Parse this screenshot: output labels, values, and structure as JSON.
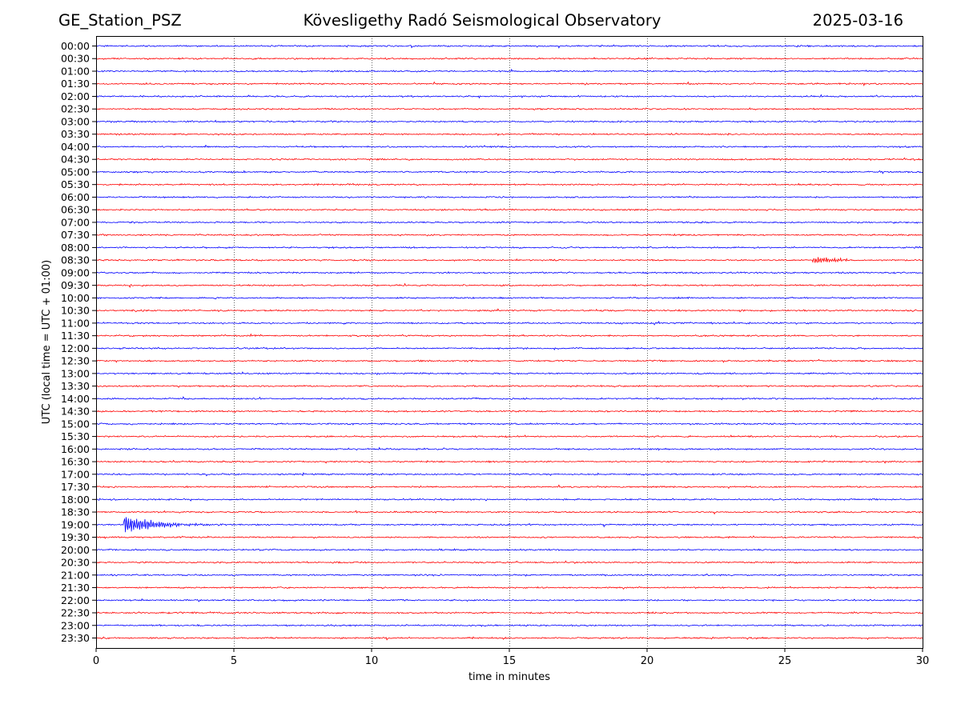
{
  "header": {
    "station": "GE_Station_PSZ",
    "title": "Kövesligethy Radó Seismological Observatory",
    "date": "2025-03-16"
  },
  "chart_data": {
    "type": "line",
    "title": "Kövesligethy Radó Seismological Observatory",
    "xlabel": "time in minutes",
    "ylabel": "UTC (local time = UTC + 01:00)",
    "xlim": [
      0,
      30
    ],
    "x_ticks": [
      0,
      5,
      10,
      15,
      20,
      25,
      30
    ],
    "vertical_gridlines": [
      5,
      10,
      15,
      20,
      25
    ],
    "grid": "dotted vertical",
    "rows": [
      "00:00",
      "00:30",
      "01:00",
      "01:30",
      "02:00",
      "02:30",
      "03:00",
      "03:30",
      "04:00",
      "04:30",
      "05:00",
      "05:30",
      "06:00",
      "06:30",
      "07:00",
      "07:30",
      "08:00",
      "08:30",
      "09:00",
      "09:30",
      "10:00",
      "10:30",
      "11:00",
      "11:30",
      "12:00",
      "12:30",
      "13:00",
      "13:30",
      "14:00",
      "14:30",
      "15:00",
      "15:30",
      "16:00",
      "16:30",
      "17:00",
      "17:30",
      "18:00",
      "18:30",
      "19:00",
      "19:30",
      "20:00",
      "20:30",
      "21:00",
      "21:30",
      "22:00",
      "22:30",
      "23:00",
      "23:30"
    ],
    "row_colors": [
      "#0000ff",
      "#ff0000"
    ],
    "events": [
      {
        "row": "19:00",
        "onset_min": 1.0,
        "end_min": 6.2,
        "peak_amplitude": 1.0
      },
      {
        "row": "08:30",
        "onset_min": 26.0,
        "end_min": 27.3,
        "peak_amplitude": 0.25
      }
    ]
  }
}
